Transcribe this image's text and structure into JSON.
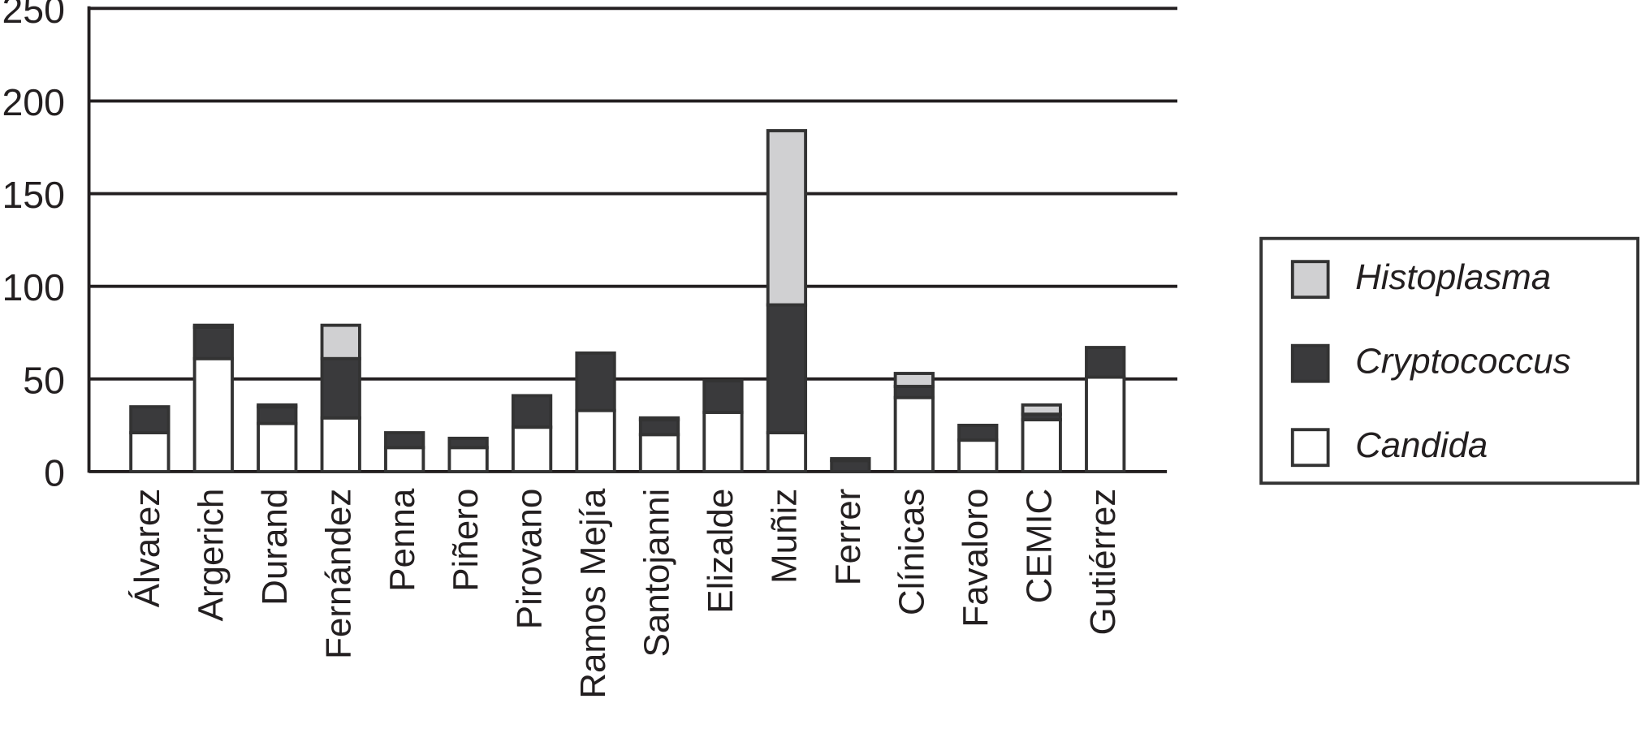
{
  "chart_data": {
    "type": "stacked-bar",
    "categories": [
      "Álvarez",
      "Argerich",
      "Durand",
      "Fernández",
      "Penna",
      "Piñero",
      "Pirovano",
      "Ramos Mejía",
      "Santojanni",
      "Elizalde",
      "Muñiz",
      "Ferrer",
      "Clínicas",
      "Favaloro",
      "CEMIC",
      "Gutiérrez"
    ],
    "series": [
      {
        "name": "Candida",
        "color": "#ffffff",
        "values": [
          21,
          61,
          26,
          29,
          13,
          13,
          24,
          33,
          20,
          32,
          21,
          0,
          40,
          17,
          28,
          51
        ]
      },
      {
        "name": "Cryptococcus",
        "color": "#3a3a3c",
        "values": [
          14,
          17,
          9,
          32,
          8,
          5,
          17,
          31,
          8,
          17,
          69,
          6,
          6,
          8,
          3,
          16
        ]
      },
      {
        "name": "Histoplasma",
        "color": "#d0d0d2",
        "values": [
          0,
          1,
          1,
          18,
          0,
          0,
          0,
          0,
          1,
          0,
          94,
          1,
          7,
          0,
          5,
          0
        ]
      }
    ],
    "ylim": [
      0,
      250
    ],
    "yticks": [
      0,
      50,
      100,
      150,
      200,
      250
    ],
    "grid": true,
    "legend": "right"
  }
}
